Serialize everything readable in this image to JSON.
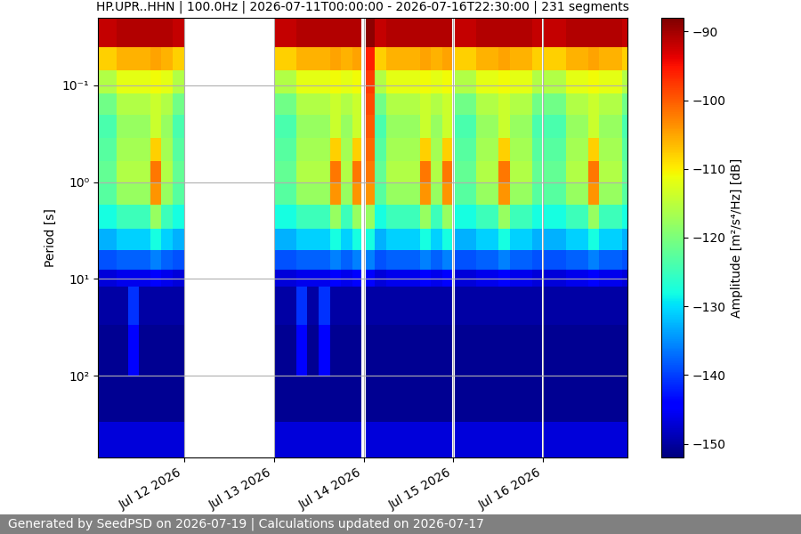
{
  "chart_data": {
    "type": "heatmap",
    "title": "HP.UPR..HHN | 100.0Hz | 2026-07-11T00:00:00 - 2026-07-16T22:30:00 | 231 segments",
    "y_label": "Period [s]",
    "footer": "Generated by SeedPSD on 2026-07-19 | Calculations updated on 2026-07-17",
    "log": "y",
    "grid": true,
    "xlim": [
      "2026-07-11T01:00",
      "2026-07-16T22:30"
    ],
    "xticks": [
      {
        "value": "2026-07-12T00:00",
        "label": "Jul 12 2026"
      },
      {
        "value": "2026-07-13T00:00",
        "label": "Jul 13 2026"
      },
      {
        "value": "2026-07-14T00:00",
        "label": "Jul 14 2026"
      },
      {
        "value": "2026-07-15T00:00",
        "label": "Jul 15 2026"
      },
      {
        "value": "2026-07-16T00:00",
        "label": "Jul 16 2026"
      }
    ],
    "ylim": [
      700,
      0.02
    ],
    "yticks": [
      {
        "value": 0.1,
        "label": "10⁻¹"
      },
      {
        "value": 1,
        "label": "10⁰"
      },
      {
        "value": 10,
        "label": "10¹"
      },
      {
        "value": 100,
        "label": "10²"
      }
    ],
    "x": [
      "2026-07-11T00:00",
      "2026-07-11T03:00",
      "2026-07-11T06:00",
      "2026-07-11T09:00",
      "2026-07-11T12:00",
      "2026-07-11T15:00",
      "2026-07-11T18:00",
      "2026-07-11T21:00",
      "2026-07-12T00:00",
      "2026-07-13T00:00",
      "2026-07-13T03:00",
      "2026-07-13T06:00",
      "2026-07-13T09:00",
      "2026-07-13T12:00",
      "2026-07-13T15:00",
      "2026-07-13T18:00",
      "2026-07-13T21:00",
      "2026-07-13T23:30",
      "2026-07-14T00:30",
      "2026-07-14T03:00",
      "2026-07-14T06:00",
      "2026-07-14T09:00",
      "2026-07-14T12:00",
      "2026-07-14T15:00",
      "2026-07-14T18:00",
      "2026-07-14T21:00",
      "2026-07-14T23:45",
      "2026-07-15T00:15",
      "2026-07-15T03:00",
      "2026-07-15T06:00",
      "2026-07-15T09:00",
      "2026-07-15T12:00",
      "2026-07-15T15:00",
      "2026-07-15T18:00",
      "2026-07-15T21:00",
      "2026-07-15T23:45",
      "2026-07-16T00:15",
      "2026-07-16T03:00",
      "2026-07-16T06:00",
      "2026-07-16T09:00",
      "2026-07-16T12:00",
      "2026-07-16T15:00",
      "2026-07-16T18:00",
      "2026-07-16T21:00",
      "2026-07-16T22:30"
    ],
    "y": [
      0.02,
      0.04,
      0.07,
      0.12,
      0.2,
      0.35,
      0.6,
      1.0,
      1.7,
      3,
      5,
      8,
      12,
      30,
      100,
      300,
      700
    ],
    "cells": [
      [
        -92,
        -108,
        -116,
        -121,
        -124,
        -123,
        -122,
        -123,
        -128,
        -133,
        -139,
        -147,
        -150,
        -151,
        -151,
        -147
      ],
      [
        -92,
        -108,
        -116,
        -121,
        -124,
        -123,
        -122,
        -123,
        -128,
        -133,
        -139,
        -147,
        -150,
        -151,
        -151,
        -147
      ],
      [
        -91,
        -106,
        -112,
        -116,
        -118,
        -117,
        -116,
        -118,
        -125,
        -131,
        -138,
        -146,
        -150,
        -151,
        -151,
        -147
      ],
      [
        -91,
        -106,
        -112,
        -116,
        -118,
        -117,
        -116,
        -118,
        -125,
        -131,
        -138,
        -146,
        -141,
        -144,
        -151,
        -147
      ],
      [
        -91,
        -106,
        -112,
        -116,
        -118,
        -117,
        -116,
        -118,
        -125,
        -131,
        -138,
        -146,
        -150,
        -151,
        -151,
        -147
      ],
      [
        -91,
        -105,
        -111,
        -114,
        -114,
        -108,
        -102,
        -104,
        -118,
        -128,
        -136,
        -145,
        -150,
        -151,
        -151,
        -147
      ],
      [
        -91,
        -106,
        -112,
        -116,
        -118,
        -117,
        -116,
        -118,
        -125,
        -131,
        -138,
        -146,
        -150,
        -151,
        -151,
        -147
      ],
      [
        -92,
        -108,
        -116,
        -121,
        -124,
        -123,
        -122,
        -123,
        -128,
        -133,
        -139,
        -147,
        -150,
        -151,
        -151,
        -147
      ],
      [
        null,
        null,
        null,
        null,
        null,
        null,
        null,
        null,
        null,
        null,
        null,
        null,
        null,
        null,
        null,
        null
      ],
      [
        -92,
        -108,
        -116,
        -121,
        -124,
        -123,
        -122,
        -123,
        -128,
        -133,
        -139,
        -147,
        -150,
        -151,
        -151,
        -147
      ],
      [
        -92,
        -108,
        -116,
        -121,
        -124,
        -123,
        -122,
        -123,
        -128,
        -133,
        -139,
        -147,
        -150,
        -151,
        -151,
        -147
      ],
      [
        -91,
        -106,
        -112,
        -116,
        -118,
        -117,
        -116,
        -118,
        -125,
        -131,
        -138,
        -146,
        -141,
        -144,
        -151,
        -147
      ],
      [
        -91,
        -106,
        -112,
        -116,
        -118,
        -117,
        -116,
        -118,
        -125,
        -131,
        -138,
        -146,
        -150,
        -151,
        -151,
        -147
      ],
      [
        -91,
        -106,
        -112,
        -116,
        -118,
        -117,
        -116,
        -118,
        -125,
        -131,
        -138,
        -146,
        -141,
        -144,
        -151,
        -147
      ],
      [
        -91,
        -105,
        -111,
        -114,
        -114,
        -108,
        -102,
        -104,
        -118,
        -128,
        -136,
        -145,
        -150,
        -151,
        -151,
        -147
      ],
      [
        -91,
        -106,
        -112,
        -116,
        -118,
        -117,
        -116,
        -118,
        -125,
        -131,
        -138,
        -146,
        -150,
        -151,
        -151,
        -147
      ],
      [
        -91,
        -105,
        -111,
        -114,
        -114,
        -108,
        -102,
        -104,
        -118,
        -128,
        -136,
        -145,
        -150,
        -151,
        -151,
        -147
      ],
      [
        null,
        null,
        null,
        null,
        null,
        null,
        null,
        null,
        null,
        null,
        null,
        null,
        null,
        null,
        null,
        null
      ],
      [
        -89,
        -96,
        -98,
        -99,
        -100,
        -101,
        -102,
        -104,
        -118,
        -128,
        -136,
        -145,
        -150,
        -151,
        -151,
        -147
      ],
      [
        -92,
        -108,
        -116,
        -121,
        -124,
        -123,
        -122,
        -123,
        -128,
        -133,
        -139,
        -147,
        -150,
        -151,
        -151,
        -147
      ],
      [
        -91,
        -106,
        -112,
        -116,
        -118,
        -117,
        -116,
        -118,
        -125,
        -131,
        -138,
        -146,
        -150,
        -151,
        -151,
        -147
      ],
      [
        -91,
        -106,
        -112,
        -116,
        -118,
        -117,
        -116,
        -118,
        -125,
        -131,
        -138,
        -146,
        -150,
        -151,
        -151,
        -147
      ],
      [
        -91,
        -106,
        -112,
        -116,
        -118,
        -117,
        -116,
        -118,
        -125,
        -131,
        -138,
        -146,
        -150,
        -151,
        -151,
        -147
      ],
      [
        -91,
        -105,
        -111,
        -114,
        -114,
        -108,
        -102,
        -104,
        -118,
        -128,
        -136,
        -145,
        -150,
        -151,
        -151,
        -147
      ],
      [
        -91,
        -106,
        -112,
        -116,
        -118,
        -117,
        -116,
        -118,
        -125,
        -131,
        -138,
        -146,
        -150,
        -151,
        -151,
        -147
      ],
      [
        -91,
        -105,
        -111,
        -114,
        -114,
        -108,
        -102,
        -104,
        -118,
        -128,
        -136,
        -145,
        -150,
        -151,
        -151,
        -147
      ],
      [
        null,
        null,
        null,
        null,
        null,
        null,
        null,
        null,
        null,
        null,
        null,
        null,
        null,
        null,
        null,
        null
      ],
      [
        -92,
        -108,
        -116,
        -121,
        -124,
        -123,
        -122,
        -123,
        -128,
        -133,
        -139,
        -147,
        -150,
        -151,
        -151,
        -147
      ],
      [
        -92,
        -108,
        -116,
        -121,
        -124,
        -123,
        -122,
        -123,
        -128,
        -133,
        -139,
        -147,
        -150,
        -151,
        -151,
        -147
      ],
      [
        -91,
        -106,
        -112,
        -116,
        -118,
        -117,
        -116,
        -118,
        -125,
        -131,
        -138,
        -146,
        -150,
        -151,
        -151,
        -147
      ],
      [
        -91,
        -106,
        -112,
        -116,
        -118,
        -117,
        -116,
        -118,
        -125,
        -131,
        -138,
        -146,
        -150,
        -151,
        -151,
        -147
      ],
      [
        -91,
        -105,
        -111,
        -114,
        -114,
        -108,
        -102,
        -104,
        -118,
        -128,
        -136,
        -145,
        -150,
        -151,
        -151,
        -147
      ],
      [
        -91,
        -106,
        -112,
        -116,
        -118,
        -117,
        -116,
        -118,
        -125,
        -131,
        -138,
        -146,
        -150,
        -151,
        -151,
        -147
      ],
      [
        -91,
        -106,
        -112,
        -116,
        -118,
        -117,
        -116,
        -118,
        -125,
        -131,
        -138,
        -146,
        -150,
        -151,
        -151,
        -147
      ],
      [
        -92,
        -108,
        -116,
        -121,
        -124,
        -123,
        -122,
        -123,
        -128,
        -133,
        -139,
        -147,
        -150,
        -151,
        -151,
        -147
      ],
      [
        null,
        null,
        null,
        null,
        null,
        null,
        null,
        null,
        null,
        null,
        null,
        null,
        null,
        null,
        null,
        null
      ],
      [
        -92,
        -108,
        -116,
        -121,
        -124,
        -123,
        -122,
        -123,
        -128,
        -133,
        -139,
        -147,
        -150,
        -151,
        -151,
        -147
      ],
      [
        -92,
        -108,
        -116,
        -121,
        -124,
        -123,
        -122,
        -123,
        -128,
        -133,
        -139,
        -147,
        -150,
        -151,
        -151,
        -147
      ],
      [
        -91,
        -106,
        -112,
        -116,
        -118,
        -117,
        -116,
        -118,
        -125,
        -131,
        -138,
        -146,
        -150,
        -151,
        -151,
        -147
      ],
      [
        -91,
        -106,
        -112,
        -116,
        -118,
        -117,
        -116,
        -118,
        -125,
        -131,
        -138,
        -146,
        -150,
        -151,
        -151,
        -147
      ],
      [
        -91,
        -105,
        -111,
        -114,
        -114,
        -108,
        -102,
        -104,
        -118,
        -128,
        -136,
        -145,
        -150,
        -151,
        -151,
        -147
      ],
      [
        -91,
        -106,
        -112,
        -116,
        -118,
        -117,
        -116,
        -118,
        -125,
        -131,
        -138,
        -146,
        -150,
        -151,
        -151,
        -147
      ],
      [
        -91,
        -106,
        -112,
        -116,
        -118,
        -117,
        -116,
        -118,
        -125,
        -131,
        -138,
        -146,
        -150,
        -151,
        -151,
        -147
      ],
      [
        -92,
        -108,
        -116,
        -121,
        -124,
        -123,
        -122,
        -123,
        -128,
        -133,
        -139,
        -147,
        -150,
        -151,
        -151,
        -147
      ]
    ],
    "colorbar": {
      "range": [
        -152,
        -88
      ],
      "ticks": [
        {
          "value": -90,
          "label": "−90"
        },
        {
          "value": -100,
          "label": "−100"
        },
        {
          "value": -110,
          "label": "−110"
        },
        {
          "value": -120,
          "label": "−120"
        },
        {
          "value": -130,
          "label": "−130"
        },
        {
          "value": -140,
          "label": "−140"
        },
        {
          "value": -150,
          "label": "−150"
        }
      ],
      "label": "Amplitude [m²/s⁴/Hz] [dB]"
    }
  }
}
